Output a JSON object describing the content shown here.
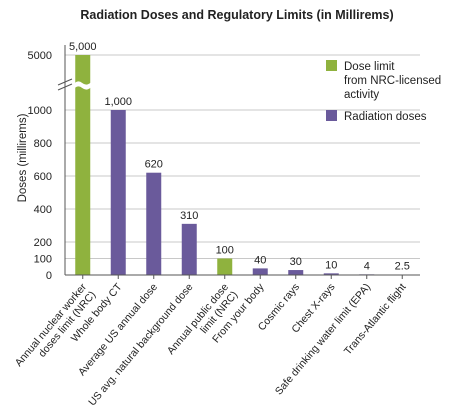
{
  "chart_data": {
    "type": "bar",
    "title": "Radiation Doses and Regulatory Limits (in Millirems)",
    "ylabel": "Doses (millirems)",
    "xlabel": "",
    "yticks": [
      "0",
      "100",
      "200",
      "400",
      "600",
      "800",
      "1000",
      "5000"
    ],
    "ylim": [
      0,
      5000
    ],
    "axis_break": true,
    "grid": true,
    "legend_position": "top-right",
    "categories": [
      "Annual nuclear worker doses limit (NRC)",
      "Whole body CT",
      "Average US annual dose",
      "US avg. natural background dose",
      "Annual public dose limit (NRC)",
      "From your body",
      "Cosmic rays",
      "Chest X-rays",
      "Safe drinking water limit (EPA)",
      "Trans-Atlantic flight"
    ],
    "category_lines": [
      [
        "Annual nuclear worker",
        "doses limit (NRC)"
      ],
      [
        "Whole body CT"
      ],
      [
        "Average US annual dose"
      ],
      [
        "US avg. natural background dose"
      ],
      [
        "Annual public dose",
        "limit (NRC)"
      ],
      [
        "From your body"
      ],
      [
        "Cosmic rays"
      ],
      [
        "Chest X-rays"
      ],
      [
        "Safe drinking water limit (EPA)"
      ],
      [
        "Trans-Atlantic flight"
      ]
    ],
    "values": [
      5000,
      1000,
      620,
      310,
      100,
      40,
      30,
      10,
      4,
      2.5
    ],
    "value_labels": [
      "5,000",
      "1,000",
      "620",
      "310",
      "100",
      "40",
      "30",
      "10",
      "4",
      "2.5"
    ],
    "series_index": [
      0,
      1,
      1,
      1,
      0,
      1,
      1,
      1,
      1,
      1
    ],
    "series": [
      {
        "name": "Dose limit from NRC-licensed activity",
        "color": "#8fb23e",
        "label_lines": [
          "Dose limit",
          "from NRC-licensed",
          "activity"
        ]
      },
      {
        "name": "Radiation doses",
        "color": "#6a5a9b",
        "label_lines": [
          "Radiation doses"
        ]
      }
    ]
  }
}
